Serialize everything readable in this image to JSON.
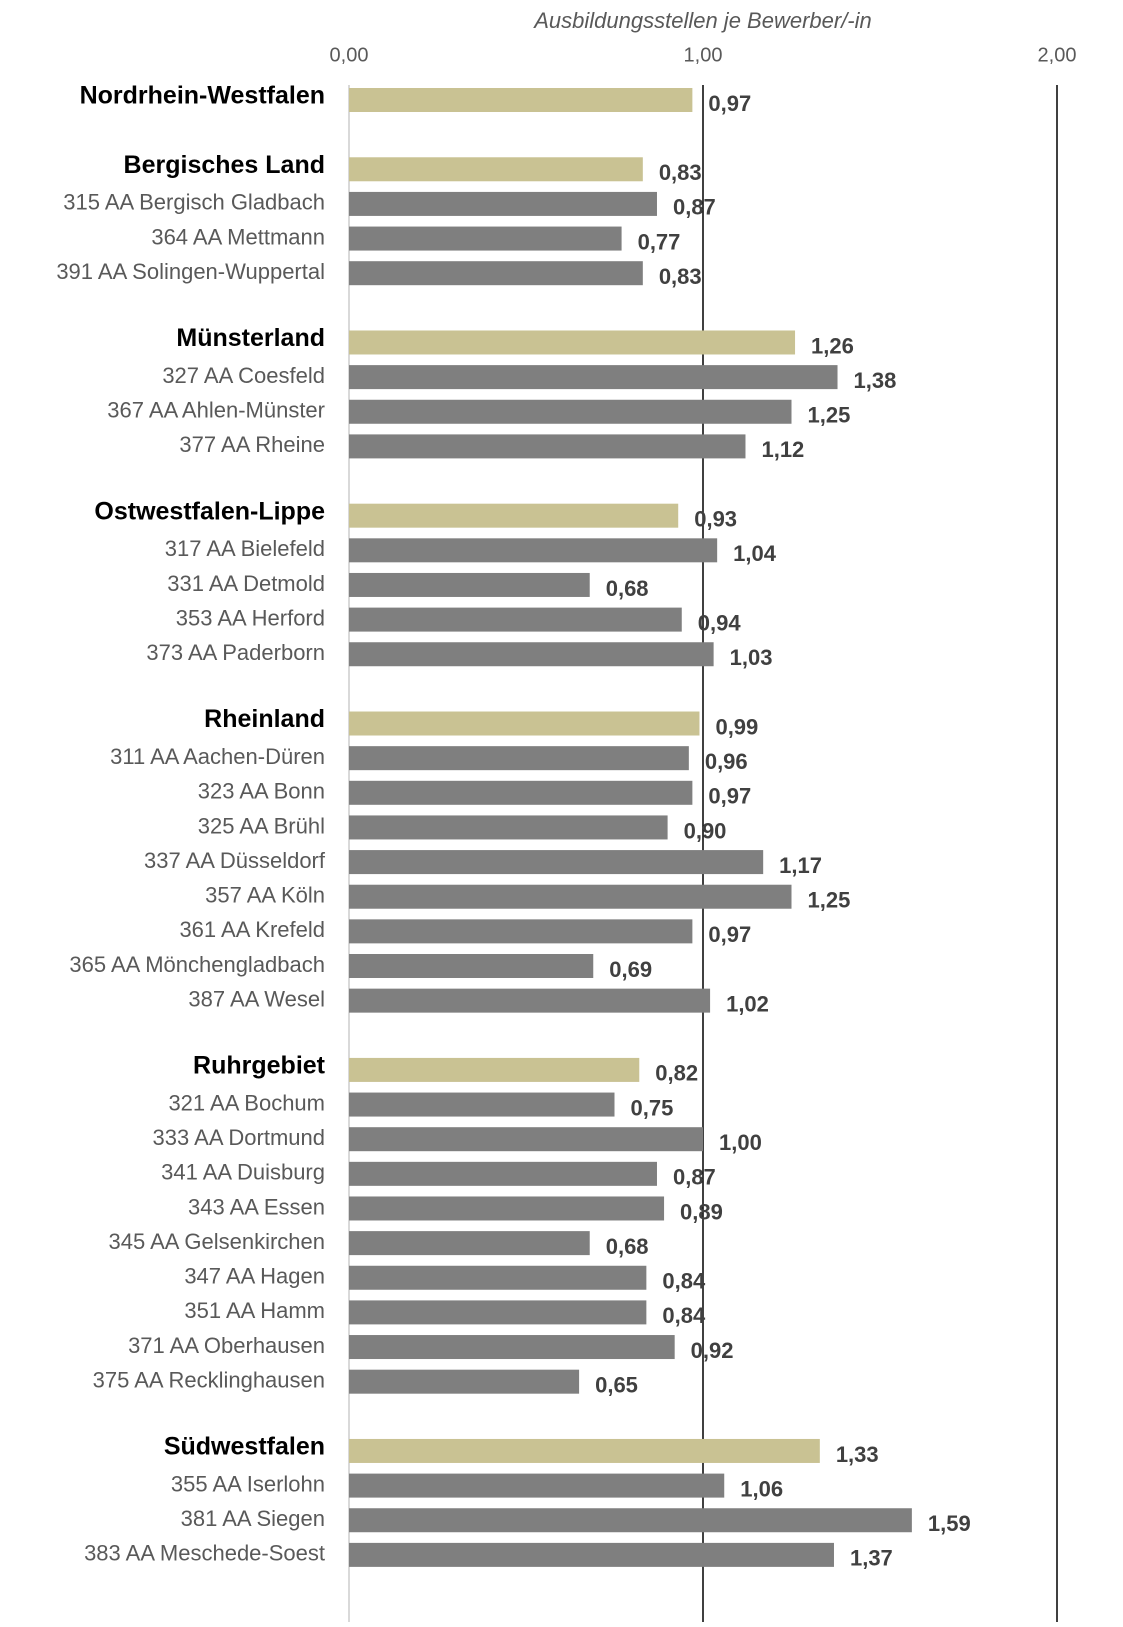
{
  "chart_data": {
    "type": "bar",
    "orientation": "horizontal",
    "x_axis_title": "Ausbildungsstellen je Bewerber/-in",
    "xlim": [
      0,
      2
    ],
    "xticks": [
      {
        "value": 0,
        "label": "0,00"
      },
      {
        "value": 1,
        "label": "1,00"
      },
      {
        "value": 2,
        "label": "2,00"
      }
    ],
    "color": "#7f7f7f",
    "highlight_color": "#c9c293",
    "categories": [
      "Nordrhein-Westfalen",
      "Bergisches Land",
      "315 AA Bergisch Gladbach",
      "364 AA Mettmann",
      "391 AA Solingen-Wuppertal",
      "Münsterland",
      "327 AA Coesfeld",
      "367 AA Ahlen-Münster",
      "377 AA Rheine",
      "Ostwestfalen-Lippe",
      "317 AA Bielefeld",
      "331 AA Detmold",
      "353 AA Herford",
      "373 AA Paderborn",
      "Rheinland",
      "311 AA Aachen-Düren",
      "323 AA Bonn",
      "325 AA Brühl",
      "337 AA Düsseldorf",
      "357 AA Köln",
      "361 AA Krefeld",
      "365 AA Mönchengladbach",
      "387 AA Wesel",
      "Ruhrgebiet",
      "321 AA Bochum",
      "333 AA Dortmund",
      "341 AA Duisburg",
      "343 AA Essen",
      "345 AA Gelsenkirchen",
      "347 AA Hagen",
      "351 AA Hamm",
      "371 AA Oberhausen",
      "375 AA Recklinghausen",
      "Südwestfalen",
      "355 AA Iserlohn",
      "381 AA Siegen",
      "383 AA Meschede-Soest"
    ],
    "highlighted": [
      true,
      true,
      false,
      false,
      false,
      true,
      false,
      false,
      false,
      true,
      false,
      false,
      false,
      false,
      true,
      false,
      false,
      false,
      false,
      false,
      false,
      false,
      false,
      true,
      false,
      false,
      false,
      false,
      false,
      false,
      false,
      false,
      false,
      true,
      false,
      false,
      false
    ],
    "values": [
      0.97,
      0.83,
      0.87,
      0.77,
      0.83,
      1.26,
      1.38,
      1.25,
      1.12,
      0.93,
      1.04,
      0.68,
      0.94,
      1.03,
      0.99,
      0.96,
      0.97,
      0.9,
      1.17,
      1.25,
      0.97,
      0.69,
      1.02,
      0.82,
      0.75,
      1.0,
      0.87,
      0.89,
      0.68,
      0.84,
      0.84,
      0.92,
      0.65,
      1.33,
      1.06,
      1.59,
      1.37
    ],
    "value_labels": [
      "0,97",
      "0,83",
      "0,87",
      "0,77",
      "0,83",
      "1,26",
      "1,38",
      "1,25",
      "1,12",
      "0,93",
      "1,04",
      "0,68",
      "0,94",
      "1,03",
      "0,99",
      "0,96",
      "0,97",
      "0,90",
      "1,17",
      "1,25",
      "0,97",
      "0,69",
      "1,02",
      "0,82",
      "0,75",
      "1,00",
      "0,87",
      "0,89",
      "0,68",
      "0,84",
      "0,84",
      "0,92",
      "0,65",
      "1,33",
      "1,06",
      "1,59",
      "1,37"
    ]
  }
}
